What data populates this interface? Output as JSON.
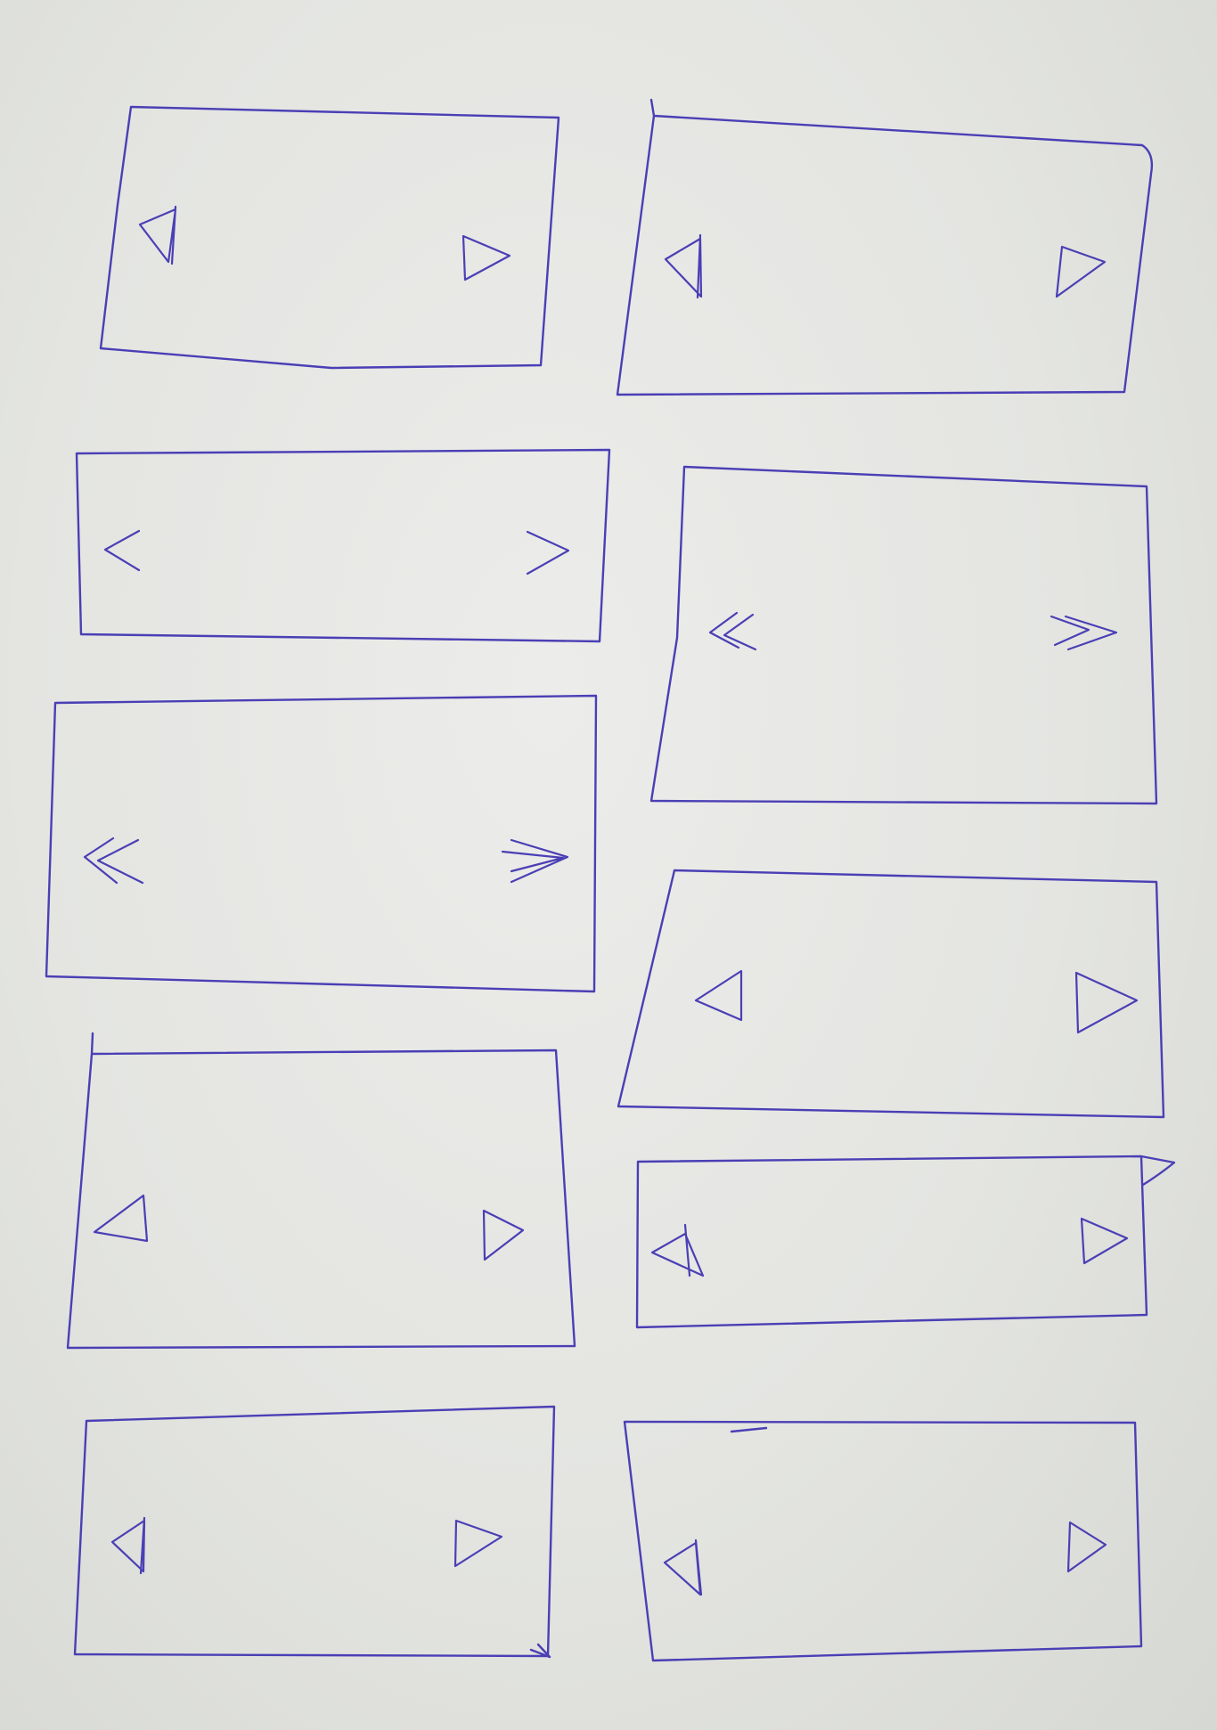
{
  "ink_color": "#4a3fb5",
  "paper_color": "#e3e4df",
  "wireframes": [
    {
      "name": "carousel-wireframe-1",
      "prev_icon": "triangle-left-icon",
      "next_icon": "triangle-right-icon"
    },
    {
      "name": "carousel-wireframe-2",
      "prev_icon": "triangle-left-icon",
      "next_icon": "triangle-right-icon"
    },
    {
      "name": "carousel-wireframe-3",
      "prev_icon": "chevron-left-icon",
      "next_icon": "chevron-right-icon"
    },
    {
      "name": "carousel-wireframe-4",
      "prev_icon": "double-chevron-left-icon",
      "next_icon": "double-chevron-right-icon"
    },
    {
      "name": "carousel-wireframe-5",
      "prev_icon": "double-chevron-left-icon",
      "next_icon": "double-chevron-right-icon"
    },
    {
      "name": "carousel-wireframe-6",
      "prev_icon": "triangle-left-icon",
      "next_icon": "triangle-right-icon"
    },
    {
      "name": "carousel-wireframe-7",
      "prev_icon": "triangle-left-icon",
      "next_icon": "triangle-right-icon"
    },
    {
      "name": "carousel-wireframe-8",
      "prev_icon": "triangle-left-icon",
      "next_icon": "triangle-right-icon"
    },
    {
      "name": "carousel-wireframe-9",
      "prev_icon": "triangle-left-icon",
      "next_icon": "triangle-right-icon"
    },
    {
      "name": "carousel-wireframe-10",
      "prev_icon": "triangle-left-icon",
      "next_icon": "triangle-right-icon"
    }
  ]
}
